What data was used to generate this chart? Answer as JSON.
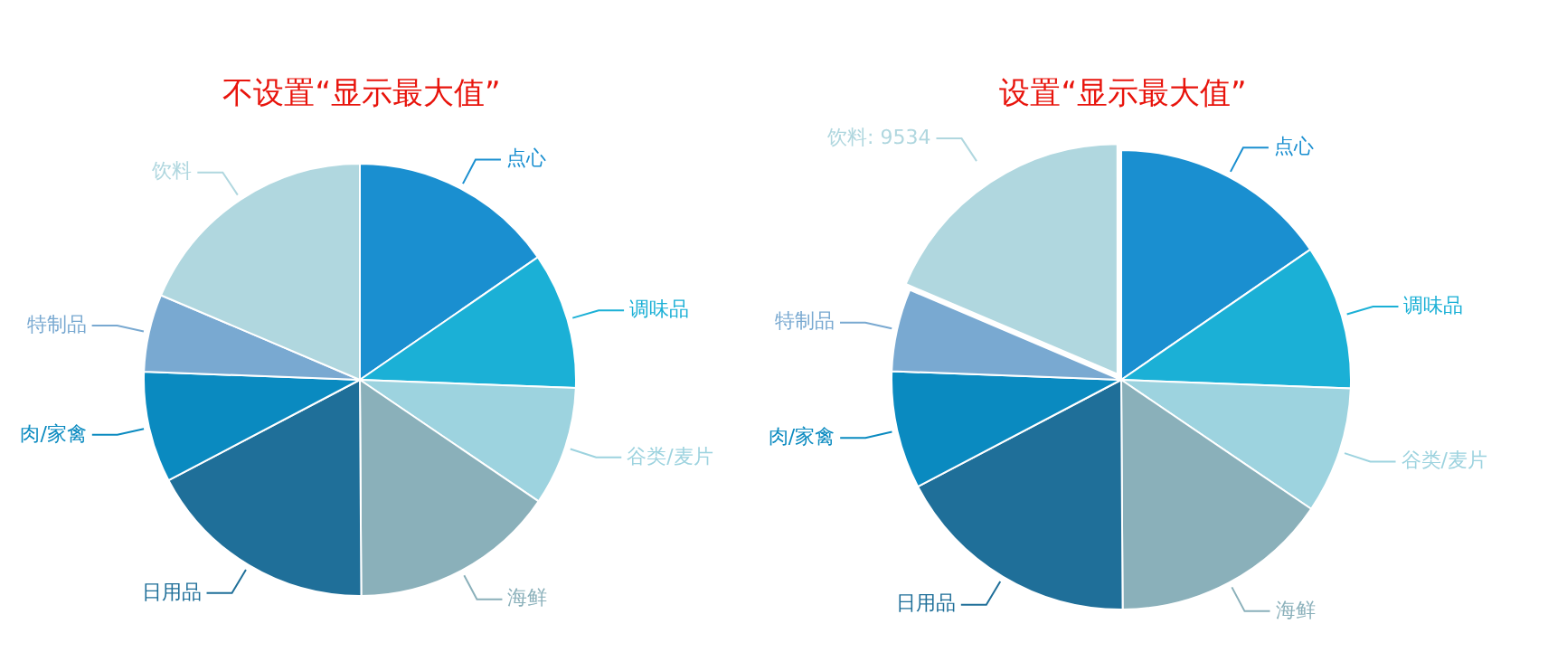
{
  "chart_data": [
    {
      "type": "pie",
      "title": "不设置“显示最大值”",
      "categories": [
        "点心",
        "调味品",
        "谷类/麦片",
        "海鲜",
        "日用品",
        "肉/家禽",
        "特制品",
        "饮料"
      ],
      "values": [
        15.4,
        10.2,
        8.9,
        15.4,
        17.4,
        8.3,
        5.8,
        18.6
      ],
      "colors": [
        "#1a8fd0",
        "#1bb0d6",
        "#9dd3df",
        "#8ab0ba",
        "#1f6f99",
        "#0a8ac0",
        "#79a9d1",
        "#b0d7df"
      ],
      "legend": false
    },
    {
      "type": "pie",
      "title": "设置“显示最大值”",
      "categories": [
        "点心",
        "调味品",
        "谷类/麦片",
        "海鲜",
        "日用品",
        "肉/家禽",
        "特制品",
        "饮料"
      ],
      "values": [
        7894,
        5228,
        4562,
        7894,
        8919,
        4254,
        2973,
        9534
      ],
      "value_labels": [
        null,
        null,
        null,
        null,
        null,
        null,
        null,
        "9534"
      ],
      "colors": [
        "#1a8fd0",
        "#1bb0d6",
        "#9dd3df",
        "#8ab0ba",
        "#1f6f99",
        "#0a8ac0",
        "#79a9d1",
        "#b0d7df"
      ],
      "legend": false
    }
  ]
}
